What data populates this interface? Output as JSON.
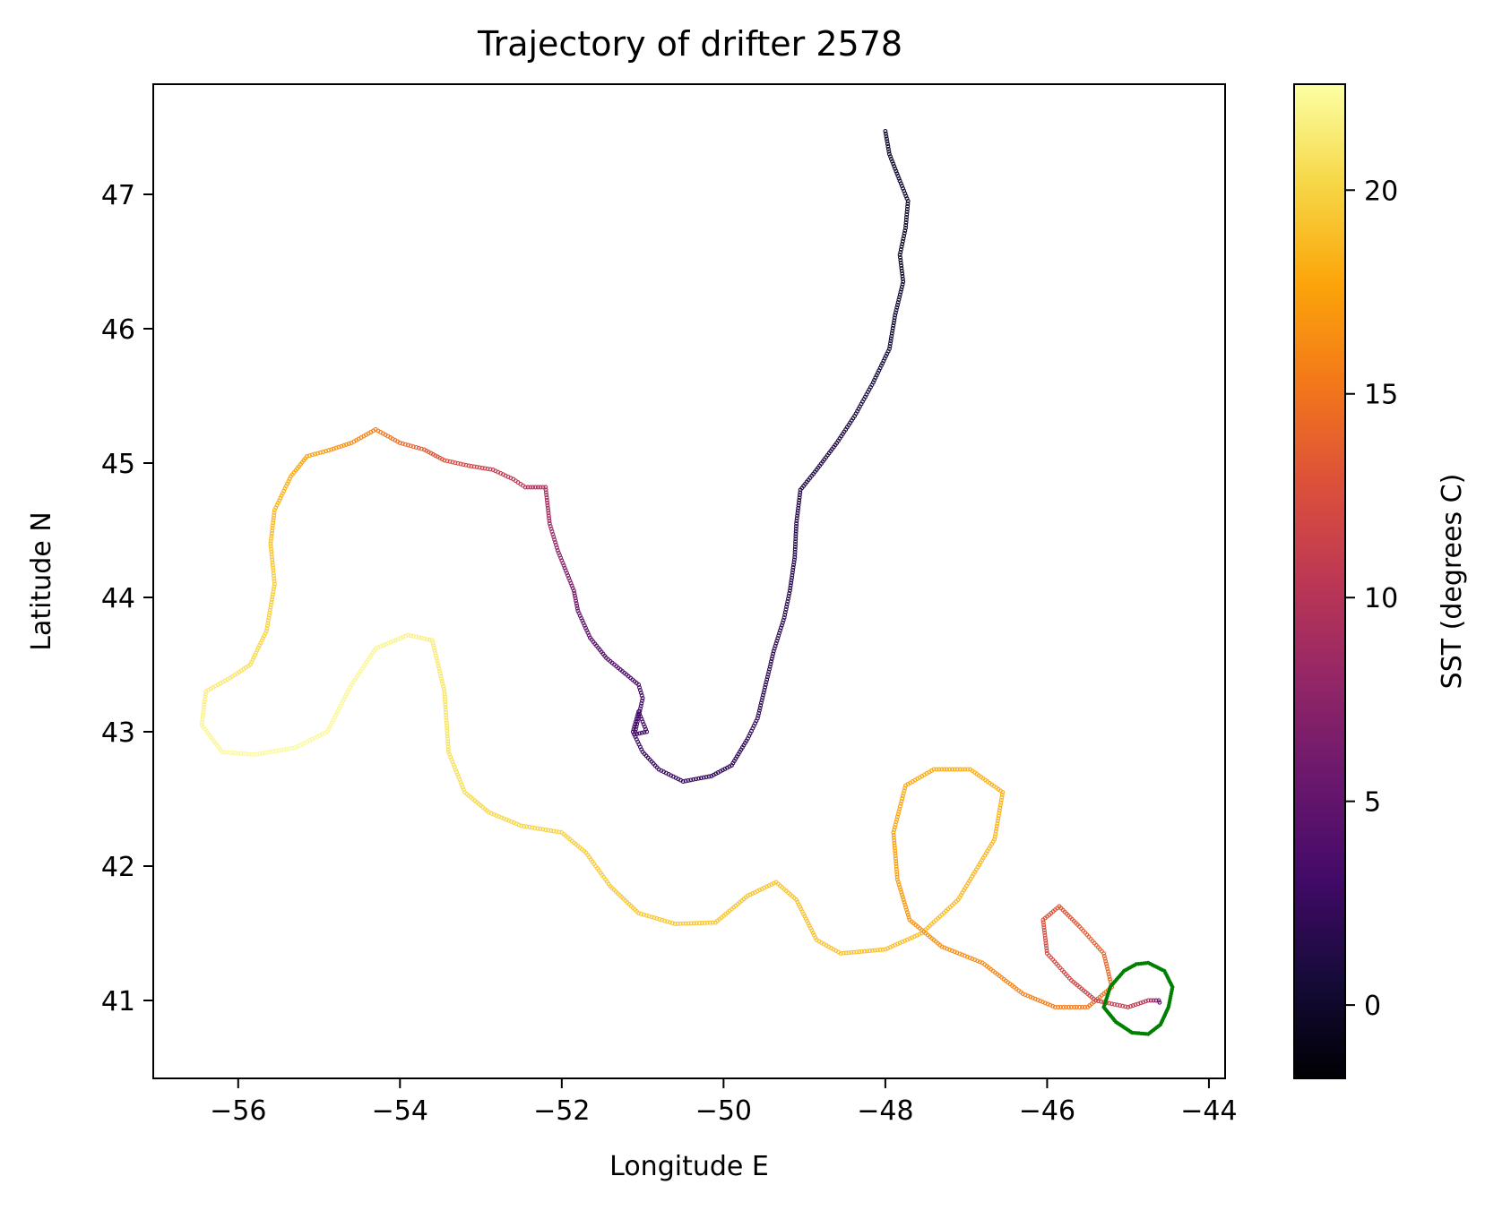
{
  "chart_data": {
    "type": "scatter",
    "title": "Trajectory of drifter 2578",
    "xlabel": "Longitude E",
    "ylabel": "Latitude N",
    "xlim": [
      -57.05,
      -43.8
    ],
    "ylim": [
      40.42,
      47.82
    ],
    "xticks": [
      -56,
      -54,
      -52,
      -50,
      -48,
      -46,
      -44
    ],
    "xtick_labels": [
      "−56",
      "−54",
      "−52",
      "−50",
      "−48",
      "−46",
      "−44"
    ],
    "yticks": [
      41,
      42,
      43,
      44,
      45,
      46,
      47
    ],
    "ytick_labels": [
      "41",
      "42",
      "43",
      "44",
      "45",
      "46",
      "47"
    ],
    "grid": false,
    "colormap": "inferno",
    "colorbar": {
      "label": "SST (degrees C)",
      "range": [
        -1.8,
        22.6
      ],
      "ticks": [
        0,
        5,
        10,
        15,
        20
      ],
      "tick_labels": [
        "0",
        "5",
        "10",
        "15",
        "20"
      ]
    },
    "highlight_color": "#008000",
    "series": [
      {
        "role": "trajectory",
        "points": [
          [
            -48.0,
            47.47,
            0.0
          ],
          [
            -47.95,
            47.3,
            0.1
          ],
          [
            -47.82,
            47.1,
            0.2
          ],
          [
            -47.72,
            46.95,
            0.0
          ],
          [
            -47.75,
            46.75,
            -0.3
          ],
          [
            -47.82,
            46.55,
            -0.5
          ],
          [
            -47.78,
            46.35,
            0.2
          ],
          [
            -47.88,
            46.1,
            0.5
          ],
          [
            -47.95,
            45.85,
            0.6
          ],
          [
            -48.15,
            45.6,
            0.8
          ],
          [
            -48.38,
            45.35,
            1.0
          ],
          [
            -48.6,
            45.15,
            1.2
          ],
          [
            -48.85,
            44.95,
            1.3
          ],
          [
            -49.05,
            44.8,
            1.4
          ],
          [
            -49.1,
            44.55,
            1.5
          ],
          [
            -49.12,
            44.3,
            1.6
          ],
          [
            -49.18,
            44.05,
            1.7
          ],
          [
            -49.25,
            43.85,
            1.8
          ],
          [
            -49.38,
            43.6,
            1.9
          ],
          [
            -49.48,
            43.35,
            2.0
          ],
          [
            -49.58,
            43.1,
            2.1
          ],
          [
            -49.7,
            42.95,
            2.2
          ],
          [
            -49.9,
            42.75,
            2.3
          ],
          [
            -50.15,
            42.67,
            2.4
          ],
          [
            -50.5,
            42.63,
            2.5
          ],
          [
            -50.8,
            42.72,
            2.6
          ],
          [
            -51.0,
            42.85,
            2.7
          ],
          [
            -51.12,
            43.0,
            2.8
          ],
          [
            -51.05,
            43.15,
            3.0
          ],
          [
            -50.95,
            43.0,
            3.0
          ],
          [
            -51.1,
            42.98,
            3.1
          ],
          [
            -51.0,
            43.25,
            3.2
          ],
          [
            -51.05,
            43.35,
            3.5
          ],
          [
            -51.25,
            43.45,
            3.8
          ],
          [
            -51.45,
            43.55,
            4.2
          ],
          [
            -51.65,
            43.7,
            4.8
          ],
          [
            -51.8,
            43.9,
            5.5
          ],
          [
            -51.85,
            44.05,
            6.2
          ],
          [
            -51.95,
            44.2,
            7.0
          ],
          [
            -52.05,
            44.35,
            7.8
          ],
          [
            -52.15,
            44.55,
            8.6
          ],
          [
            -52.2,
            44.82,
            9.4
          ],
          [
            -52.45,
            44.82,
            10.0
          ],
          [
            -52.6,
            44.88,
            10.5
          ],
          [
            -52.85,
            44.95,
            11.0
          ],
          [
            -53.15,
            44.98,
            11.8
          ],
          [
            -53.45,
            45.02,
            12.6
          ],
          [
            -53.7,
            45.1,
            13.5
          ],
          [
            -54.0,
            45.15,
            14.5
          ],
          [
            -54.3,
            45.25,
            15.5
          ],
          [
            -54.6,
            45.15,
            16.2
          ],
          [
            -54.85,
            45.1,
            16.8
          ],
          [
            -55.15,
            45.05,
            17.4
          ],
          [
            -55.35,
            44.9,
            18.0
          ],
          [
            -55.55,
            44.65,
            18.5
          ],
          [
            -55.6,
            44.4,
            19.0
          ],
          [
            -55.55,
            44.1,
            19.5
          ],
          [
            -55.65,
            43.75,
            20.0
          ],
          [
            -55.85,
            43.5,
            20.5
          ],
          [
            -56.1,
            43.4,
            21.0
          ],
          [
            -56.4,
            43.3,
            21.5
          ],
          [
            -56.45,
            43.05,
            22.0
          ],
          [
            -56.2,
            42.85,
            22.2
          ],
          [
            -55.8,
            42.83,
            22.3
          ],
          [
            -55.3,
            42.88,
            22.3
          ],
          [
            -54.9,
            43.0,
            22.2
          ],
          [
            -54.6,
            43.35,
            22.1
          ],
          [
            -54.3,
            43.62,
            22.0
          ],
          [
            -53.9,
            43.72,
            21.8
          ],
          [
            -53.6,
            43.68,
            21.5
          ],
          [
            -53.45,
            43.3,
            21.0
          ],
          [
            -53.4,
            42.85,
            20.8
          ],
          [
            -53.2,
            42.55,
            20.5
          ],
          [
            -52.9,
            42.4,
            20.2
          ],
          [
            -52.5,
            42.3,
            20.0
          ],
          [
            -52.0,
            42.25,
            19.8
          ],
          [
            -51.7,
            42.1,
            19.6
          ],
          [
            -51.4,
            41.85,
            19.5
          ],
          [
            -51.05,
            41.65,
            19.4
          ],
          [
            -50.6,
            41.57,
            19.3
          ],
          [
            -50.1,
            41.58,
            19.3
          ],
          [
            -49.7,
            41.78,
            19.2
          ],
          [
            -49.35,
            41.88,
            19.2
          ],
          [
            -49.1,
            41.75,
            19.1
          ],
          [
            -48.85,
            41.45,
            19.1
          ],
          [
            -48.55,
            41.35,
            19.0
          ],
          [
            -48.0,
            41.38,
            19.0
          ],
          [
            -47.55,
            41.5,
            18.8
          ],
          [
            -47.1,
            41.75,
            18.6
          ],
          [
            -46.65,
            42.2,
            18.5
          ],
          [
            -46.55,
            42.55,
            18.3
          ],
          [
            -46.95,
            42.72,
            18.2
          ],
          [
            -47.4,
            42.72,
            18.0
          ],
          [
            -47.75,
            42.6,
            17.8
          ],
          [
            -47.9,
            42.25,
            17.5
          ],
          [
            -47.85,
            41.9,
            17.2
          ],
          [
            -47.7,
            41.6,
            16.8
          ],
          [
            -47.3,
            41.4,
            16.5
          ],
          [
            -46.8,
            41.28,
            16.2
          ],
          [
            -46.3,
            41.05,
            15.8
          ],
          [
            -45.9,
            40.95,
            15.5
          ],
          [
            -45.5,
            40.95,
            15.0
          ],
          [
            -45.2,
            41.1,
            14.5
          ],
          [
            -45.3,
            41.35,
            14.0
          ],
          [
            -45.6,
            41.55,
            13.5
          ],
          [
            -45.85,
            41.7,
            13.0
          ],
          [
            -46.05,
            41.6,
            12.5
          ],
          [
            -46.0,
            41.35,
            12.0
          ],
          [
            -45.7,
            41.15,
            11.8
          ],
          [
            -45.4,
            41.0,
            11.5
          ],
          [
            -45.0,
            40.95,
            11.0
          ],
          [
            -44.75,
            41.0,
            10.0
          ],
          [
            -44.62,
            41.0,
            6.0
          ],
          [
            -44.6,
            40.97,
            4.0
          ]
        ]
      },
      {
        "role": "highlighted loop",
        "points": [
          [
            -44.75,
            41.28
          ],
          [
            -44.55,
            41.22
          ],
          [
            -44.45,
            41.1
          ],
          [
            -44.5,
            40.95
          ],
          [
            -44.6,
            40.82
          ],
          [
            -44.75,
            40.75
          ],
          [
            -44.95,
            40.76
          ],
          [
            -45.15,
            40.84
          ],
          [
            -45.3,
            40.95
          ],
          [
            -45.22,
            41.1
          ],
          [
            -45.05,
            41.22
          ],
          [
            -44.9,
            41.27
          ],
          [
            -44.75,
            41.28
          ]
        ]
      }
    ]
  }
}
